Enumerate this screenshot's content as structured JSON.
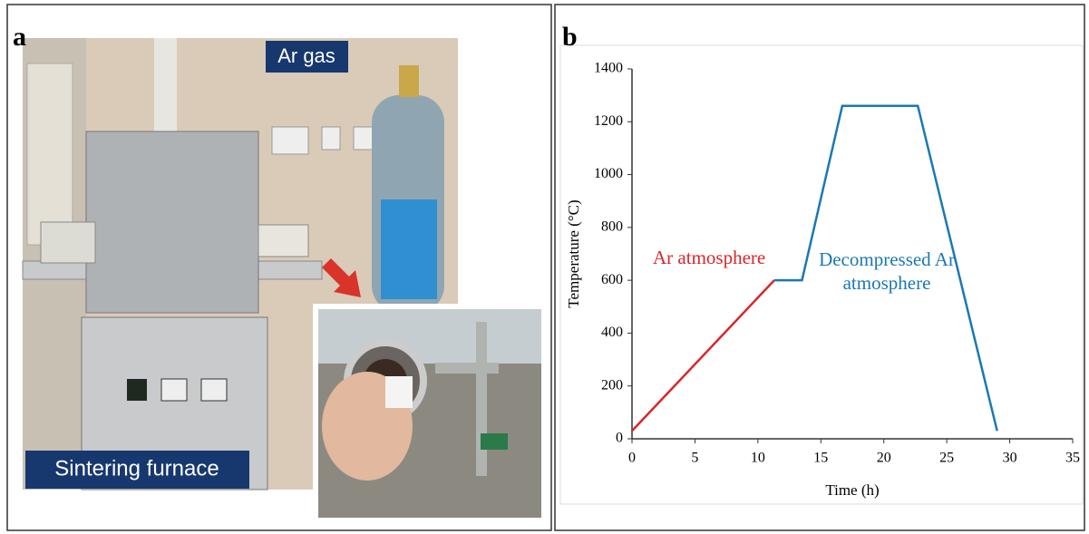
{
  "photo_panel": {
    "panel_label": "a",
    "labels": [
      "Ar gas",
      "Sintering furnace"
    ]
  },
  "chart_data": {
    "type": "line",
    "panel_label": "b",
    "x_label": "Time (h)",
    "y_label": "Temperature (°C)",
    "xlim": [
      0,
      35
    ],
    "xticks": [
      0,
      5,
      10,
      15,
      20,
      25,
      30,
      35
    ],
    "ylim": [
      0,
      1400
    ],
    "yticks": [
      0,
      200,
      400,
      600,
      800,
      1000,
      1200,
      1400
    ],
    "series": [
      {
        "name": "Ar atmosphere",
        "color": "#d9262b",
        "x": [
          0,
          11.3
        ],
        "values": [
          30,
          600
        ]
      },
      {
        "name": "Decompressed Ar atmosphere",
        "color": "#1a78b4",
        "x": [
          11.3,
          13.5,
          16.7,
          22.7,
          29
        ],
        "values": [
          600,
          600,
          1260,
          1260,
          30
        ]
      }
    ]
  }
}
